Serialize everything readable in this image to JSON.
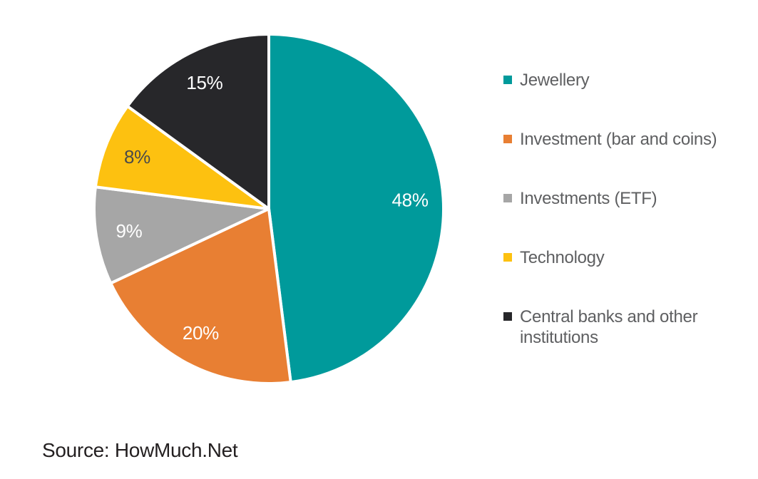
{
  "chart_data": {
    "type": "pie",
    "title": "",
    "categories": [
      "Jewellery",
      "Investment (bar and coins)",
      "Investments (ETF)",
      "Technology",
      "Central banks and other institutions"
    ],
    "values": [
      48,
      20,
      9,
      8,
      15
    ],
    "slices": [
      {
        "label": "Jewellery",
        "value": 48,
        "value_label": "48%",
        "color": "#009A9B",
        "value_label_color": "#FFFFFF"
      },
      {
        "label": "Investment (bar and coins)",
        "value": 20,
        "value_label": "20%",
        "color": "#E87F33",
        "value_label_color": "#FFFFFF"
      },
      {
        "label": "Investments (ETF)",
        "value": 9,
        "value_label": "9%",
        "color": "#A6A6A6",
        "value_label_color": "#FFFFFF"
      },
      {
        "label": "Technology",
        "value": 8,
        "value_label": "8%",
        "color": "#FDC110",
        "value_label_color": "#4A4A4A"
      },
      {
        "label": "Central banks and other institutions",
        "value": 15,
        "value_label": "15%",
        "color": "#27272A",
        "value_label_color": "#FFFFFF"
      }
    ],
    "start_angle_deg": 0,
    "direction": "clockwise",
    "slice_separator_color": "#FFFFFF",
    "legend_position": "right",
    "legend_text_color": "#5E5F61",
    "grid": false
  },
  "footer": {
    "source_label": "Source: HowMuch.Net",
    "source_text_color": "#231F20"
  }
}
